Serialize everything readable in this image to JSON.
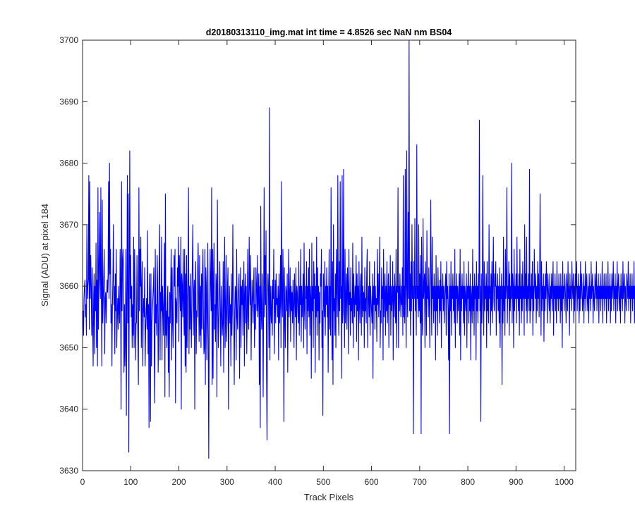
{
  "chart_data": {
    "type": "line",
    "title": "d20180313110_img.mat int time = 4.8526 sec  NaN nm BS04",
    "xlabel": "Track Pixels",
    "ylabel": "Signal (ADU) at pixel 184",
    "xlim": [
      0,
      1024
    ],
    "ylim": [
      3630,
      3700
    ],
    "xticks": [
      0,
      100,
      200,
      300,
      400,
      500,
      600,
      700,
      800,
      900,
      1000
    ],
    "yticks": [
      3630,
      3640,
      3650,
      3660,
      3670,
      3680,
      3690,
      3700
    ],
    "grid": false,
    "series_color": "#0000ff",
    "series": [
      {
        "x_start": 1,
        "x_step": 1,
        "values": [
          3656,
          3652,
          3658,
          3660,
          3661,
          3655,
          3657,
          3652,
          3670,
          3658,
          3660,
          3661,
          3678,
          3653,
          3677,
          3658,
          3665,
          3660,
          3652,
          3663,
          3654,
          3647,
          3658,
          3662,
          3649,
          3660,
          3656,
          3667,
          3650,
          3661,
          3647,
          3676,
          3653,
          3662,
          3672,
          3661,
          3658,
          3676,
          3659,
          3647,
          3674,
          3654,
          3658,
          3662,
          3666,
          3649,
          3658,
          3659,
          3654,
          3658,
          3661,
          3659,
          3662,
          3677,
          3658,
          3680,
          3662,
          3666,
          3654,
          3657,
          3647,
          3657,
          3661,
          3670,
          3657,
          3660,
          3649,
          3662,
          3656,
          3666,
          3650,
          3655,
          3658,
          3653,
          3660,
          3656,
          3654,
          3666,
          3661,
          3640,
          3677,
          3656,
          3664,
          3666,
          3662,
          3646,
          3657,
          3647,
          3652,
          3666,
          3639,
          3658,
          3678,
          3654,
          3675,
          3633,
          3660,
          3682,
          3658,
          3665,
          3655,
          3660,
          3650,
          3657,
          3652,
          3668,
          3650,
          3666,
          3660,
          3648,
          3654,
          3654,
          3665,
          3658,
          3651,
          3644,
          3676,
          3656,
          3666,
          3660,
          3668,
          3650,
          3660,
          3664,
          3647,
          3656,
          3658,
          3655,
          3663,
          3647,
          3653,
          3656,
          3658,
          3653,
          3669,
          3649,
          3657,
          3637,
          3662,
          3659,
          3638,
          3662,
          3647,
          3654,
          3656,
          3658,
          3660,
          3663,
          3648,
          3641,
          3666,
          3654,
          3657,
          3652,
          3665,
          3660,
          3646,
          3653,
          3663,
          3670,
          3648,
          3659,
          3656,
          3668,
          3648,
          3660,
          3657,
          3652,
          3658,
          3667,
          3642,
          3675,
          3652,
          3656,
          3650,
          3657,
          3660,
          3646,
          3655,
          3642,
          3659,
          3654,
          3660,
          3666,
          3648,
          3663,
          3654,
          3650,
          3659,
          3665,
          3660,
          3666,
          3641,
          3658,
          3657,
          3654,
          3663,
          3660,
          3668,
          3651,
          3665,
          3660,
          3656,
          3668,
          3640,
          3662,
          3660,
          3655,
          3666,
          3657,
          3652,
          3666,
          3647,
          3662,
          3646,
          3665,
          3650,
          3658,
          3662,
          3676,
          3649,
          3660,
          3653,
          3662,
          3655,
          3650,
          3659,
          3664,
          3670,
          3652,
          3659,
          3661,
          3640,
          3660,
          3664,
          3649,
          3656,
          3655,
          3663,
          3667,
          3658,
          3651,
          3665,
          3652,
          3660,
          3650,
          3662,
          3653,
          3662,
          3666,
          3655,
          3649,
          3650,
          3666,
          3644,
          3663,
          3660,
          3648,
          3654,
          3667,
          3652,
          3632,
          3654,
          3658,
          3666,
          3660,
          3656,
          3676,
          3644,
          3666,
          3645,
          3662,
          3667,
          3653,
          3657,
          3651,
          3662,
          3660,
          3642,
          3674,
          3659,
          3650,
          3654,
          3659,
          3664,
          3656,
          3647,
          3660,
          3656,
          3652,
          3654,
          3664,
          3646,
          3658,
          3668,
          3650,
          3656,
          3665,
          3651,
          3654,
          3660,
          3663,
          3640,
          3655,
          3660,
          3654,
          3657,
          3647,
          3662,
          3652,
          3656,
          3670,
          3658,
          3655,
          3644,
          3656,
          3660,
          3659,
          3648,
          3666,
          3655,
          3653,
          3658,
          3660,
          3662,
          3645,
          3656,
          3663,
          3650,
          3660,
          3657,
          3661,
          3652,
          3658,
          3664,
          3647,
          3659,
          3662,
          3654,
          3660,
          3649,
          3656,
          3666,
          3655,
          3653,
          3668,
          3660,
          3657,
          3665,
          3648,
          3656,
          3661,
          3658,
          3654,
          3660,
          3663,
          3650,
          3657,
          3653,
          3663,
          3660,
          3656,
          3665,
          3655,
          3659,
          3662,
          3644,
          3660,
          3637,
          3673,
          3656,
          3653,
          3662,
          3656,
          3642,
          3658,
          3676,
          3655,
          3665,
          3657,
          3669,
          3646,
          3635,
          3658,
          3662,
          3659,
          3650,
          3689,
          3648,
          3660,
          3656,
          3654,
          3660,
          3652,
          3661,
          3658,
          3666,
          3649,
          3656,
          3661,
          3654,
          3662,
          3657,
          3658,
          3655,
          3660,
          3648,
          3662,
          3654,
          3657,
          3665,
          3650,
          3677,
          3658,
          3655,
          3666,
          3660,
          3638,
          3663,
          3655,
          3650,
          3660,
          3659,
          3656,
          3662,
          3646,
          3658,
          3666,
          3655,
          3658,
          3663,
          3651,
          3660,
          3656,
          3659,
          3654,
          3661,
          3657,
          3650,
          3662,
          3658,
          3655,
          3663,
          3648,
          3660,
          3659,
          3656,
          3654,
          3664,
          3652,
          3660,
          3657,
          3666,
          3651,
          3660,
          3655,
          3658,
          3662,
          3650,
          3667,
          3656,
          3653,
          3660,
          3658,
          3664,
          3649,
          3660,
          3656,
          3663,
          3655,
          3666,
          3652,
          3660,
          3658,
          3645,
          3667,
          3656,
          3660,
          3650,
          3664,
          3658,
          3662,
          3646,
          3660,
          3655,
          3668,
          3652,
          3663,
          3656,
          3660,
          3648,
          3659,
          3654,
          3662,
          3660,
          3666,
          3650,
          3656,
          3639,
          3662,
          3658,
          3655,
          3664,
          3652,
          3660,
          3657,
          3663,
          3655,
          3660,
          3646,
          3658,
          3666,
          3653,
          3660,
          3652,
          3676,
          3660,
          3648,
          3664,
          3644,
          3670,
          3656,
          3658,
          3652,
          3662,
          3650,
          3666,
          3660,
          3655,
          3678,
          3658,
          3652,
          3664,
          3656,
          3677,
          3658,
          3660,
          3645,
          3678,
          3654,
          3656,
          3679,
          3660,
          3650,
          3666,
          3654,
          3658,
          3662,
          3653,
          3663,
          3660,
          3649,
          3666,
          3657,
          3659,
          3652,
          3663,
          3656,
          3658,
          3654,
          3667,
          3650,
          3662,
          3658,
          3655,
          3660,
          3657,
          3665,
          3651,
          3662,
          3656,
          3660,
          3648,
          3664,
          3657,
          3654,
          3660,
          3662,
          3652,
          3668,
          3655,
          3660,
          3656,
          3659,
          3650,
          3663,
          3656,
          3658,
          3654,
          3662,
          3666,
          3650,
          3658,
          3660,
          3655,
          3664,
          3652,
          3660,
          3658,
          3656,
          3654,
          3662,
          3645,
          3660,
          3657,
          3664,
          3653,
          3660,
          3656,
          3658,
          3651,
          3666,
          3657,
          3662,
          3655,
          3660,
          3668,
          3650,
          3656,
          3654,
          3663,
          3658,
          3660,
          3648,
          3666,
          3655,
          3658,
          3662,
          3652,
          3660,
          3656,
          3664,
          3654,
          3658,
          3662,
          3650,
          3660,
          3657,
          3665,
          3652,
          3660,
          3656,
          3658,
          3664,
          3648,
          3660,
          3655,
          3662,
          3658,
          3654,
          3666,
          3650,
          3660,
          3659,
          3676,
          3650,
          3660,
          3656,
          3662,
          3658,
          3655,
          3660,
          3657,
          3663,
          3652,
          3678,
          3655,
          3660,
          3654,
          3679,
          3658,
          3650,
          3682,
          3660,
          3655,
          3672,
          3658,
          3700,
          3656,
          3662,
          3652,
          3664,
          3656,
          3670,
          3658,
          3660,
          3636,
          3664,
          3658,
          3671,
          3656,
          3660,
          3652,
          3683,
          3658,
          3660,
          3655,
          3670,
          3656,
          3662,
          3654,
          3665,
          3636,
          3668,
          3655,
          3652,
          3671,
          3658,
          3660,
          3662,
          3650,
          3664,
          3660,
          3652,
          3669,
          3658,
          3660,
          3655,
          3663,
          3658,
          3650,
          3662,
          3674,
          3660,
          3652,
          3668,
          3658,
          3660,
          3654,
          3662,
          3656,
          3660,
          3648,
          3665,
          3656,
          3660,
          3652,
          3663,
          3658,
          3660,
          3654,
          3661,
          3656,
          3664,
          3650,
          3660,
          3658,
          3662,
          3656,
          3660,
          3654,
          3658,
          3660,
          3662,
          3652,
          3664,
          3658,
          3660,
          3656,
          3648,
          3662,
          3636,
          3660,
          3656,
          3664,
          3652,
          3660,
          3658,
          3662,
          3656,
          3660,
          3654,
          3666,
          3650,
          3660,
          3658,
          3662,
          3654,
          3660,
          3656,
          3658,
          3662,
          3652,
          3666,
          3648,
          3660,
          3656,
          3662,
          3658,
          3660,
          3654,
          3664,
          3652,
          3660,
          3658,
          3656,
          3662,
          3650,
          3660,
          3658,
          3664,
          3654,
          3660,
          3656,
          3662,
          3648,
          3660,
          3658,
          3654,
          3666,
          3656,
          3660,
          3652,
          3662,
          3658,
          3660,
          3648,
          3664,
          3656,
          3660,
          3654,
          3662,
          3658,
          3687,
          3656,
          3660,
          3638,
          3662,
          3654,
          3658,
          3678,
          3660,
          3652,
          3664,
          3656,
          3660,
          3658,
          3662,
          3650,
          3664,
          3656,
          3660,
          3654,
          3670,
          3658,
          3660,
          3652,
          3662,
          3656,
          3664,
          3654,
          3660,
          3668,
          3658,
          3656,
          3662,
          3660,
          3664,
          3652,
          3660,
          3658,
          3662,
          3656,
          3660,
          3654,
          3663,
          3650,
          3660,
          3658,
          3662,
          3644,
          3660,
          3654,
          3668,
          3656,
          3660,
          3652,
          3666,
          3658,
          3660,
          3676,
          3654,
          3660,
          3658,
          3664,
          3652,
          3662,
          3656,
          3660,
          3658,
          3680,
          3654,
          3662,
          3660,
          3650,
          3666,
          3656,
          3660,
          3658,
          3662,
          3654,
          3668,
          3658,
          3660,
          3656,
          3662,
          3652,
          3666,
          3658,
          3660,
          3654,
          3662,
          3656,
          3664,
          3658,
          3660,
          3652,
          3670,
          3658,
          3662,
          3656,
          3668,
          3654,
          3660,
          3658,
          3662,
          3656,
          3679,
          3654,
          3660,
          3656,
          3662,
          3658,
          3664,
          3652,
          3660,
          3656,
          3666,
          3660,
          3658,
          3662,
          3654,
          3660,
          3656,
          3664,
          3658,
          3662,
          3655,
          3660,
          3675,
          3660,
          3652,
          3664,
          3656,
          3660,
          3658,
          3662,
          3651,
          3660,
          3656,
          3662,
          3658,
          3664,
          3660,
          3654,
          3662,
          3660,
          3658,
          3656,
          3662,
          3654,
          3660,
          3658,
          3662,
          3656,
          3660,
          3664,
          3652,
          3660,
          3658,
          3662,
          3656,
          3660,
          3654,
          3664,
          3658,
          3660,
          3656,
          3662,
          3658,
          3660,
          3654,
          3662,
          3656,
          3660,
          3650,
          3664,
          3658,
          3660,
          3656,
          3662,
          3660,
          3658,
          3654,
          3662,
          3660,
          3656,
          3664,
          3658,
          3660,
          3652,
          3662,
          3658,
          3660,
          3656,
          3664,
          3660,
          3658,
          3662,
          3654,
          3660,
          3656,
          3662,
          3658,
          3660,
          3664,
          3656,
          3660,
          3658,
          3662,
          3654,
          3660,
          3656,
          3664,
          3658,
          3662,
          3660,
          3656,
          3658,
          3662,
          3654,
          3660,
          3658,
          3664,
          3656,
          3660,
          3662,
          3658,
          3656,
          3660,
          3654,
          3662,
          3658,
          3660,
          3656,
          3664,
          3658,
          3660,
          3662,
          3654,
          3660,
          3658,
          3656,
          3662,
          3660,
          3658,
          3664,
          3656,
          3660,
          3658,
          3662,
          3654,
          3660,
          3658,
          3662,
          3656,
          3660,
          3658,
          3664,
          3654,
          3660,
          3658,
          3662,
          3656,
          3660,
          3658,
          3662,
          3654,
          3660,
          3658,
          3664,
          3656,
          3660,
          3658,
          3662,
          3654,
          3660,
          3656,
          3662,
          3658,
          3660,
          3664,
          3656,
          3660,
          3658,
          3662,
          3654,
          3660,
          3658,
          3664,
          3656,
          3660,
          3662,
          3658,
          3656,
          3660,
          3654,
          3662,
          3658,
          3660,
          3656,
          3664,
          3658,
          3660,
          3662,
          3654,
          3660,
          3658,
          3656,
          3662,
          3660,
          3658,
          3664,
          3656,
          3660,
          3658,
          3662,
          3654,
          3660,
          3658,
          3662,
          3656,
          3660,
          3658,
          3664,
          3654,
          3660,
          3658,
          3662,
          3656,
          3660,
          3658,
          3662,
          3654,
          3660,
          3658,
          3664,
          3656,
          3660,
          3658,
          3662,
          3654,
          3660,
          3656,
          3662,
          3658,
          3660,
          3664,
          3656,
          3660,
          3658,
          3662,
          3654,
          3660,
          3658,
          3664,
          3656,
          3660,
          3662,
          3658,
          3656,
          3660,
          3654,
          3662
        ]
      }
    ]
  }
}
